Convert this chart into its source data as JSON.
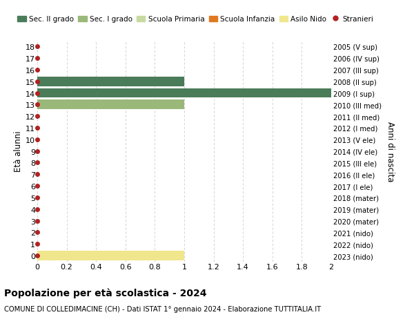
{
  "title": "Popolazione per età scolastica - 2024",
  "subtitle": "COMUNE DI COLLEDIMACINE (CH) - Dati ISTAT 1° gennaio 2024 - Elaborazione TUTTITALIA.IT",
  "ylabel_left": "Età alunni",
  "ylabel_right": "Anni di nascita",
  "xlim": [
    0,
    2.0
  ],
  "yticks": [
    0,
    1,
    2,
    3,
    4,
    5,
    6,
    7,
    8,
    9,
    10,
    11,
    12,
    13,
    14,
    15,
    16,
    17,
    18
  ],
  "right_labels": [
    "2023 (nido)",
    "2022 (nido)",
    "2021 (nido)",
    "2020 (mater)",
    "2019 (mater)",
    "2018 (mater)",
    "2017 (I ele)",
    "2016 (II ele)",
    "2015 (III ele)",
    "2014 (IV ele)",
    "2013 (V ele)",
    "2012 (I med)",
    "2011 (II med)",
    "2010 (III med)",
    "2009 (I sup)",
    "2008 (II sup)",
    "2007 (III sup)",
    "2006 (IV sup)",
    "2005 (V sup)"
  ],
  "bars": [
    {
      "age": 0,
      "value": 1.0,
      "color": "#f0e68c"
    },
    {
      "age": 13,
      "value": 1.0,
      "color": "#9ab87a"
    },
    {
      "age": 14,
      "value": 2.0,
      "color": "#4a7c59"
    },
    {
      "age": 15,
      "value": 1.0,
      "color": "#4a7c59"
    }
  ],
  "stranieri_dots": [
    0,
    1,
    2,
    3,
    4,
    5,
    6,
    7,
    8,
    9,
    10,
    11,
    12,
    13,
    14,
    15,
    16,
    17,
    18
  ],
  "dot_color": "#b22222",
  "legend_items": [
    {
      "label": "Sec. II grado",
      "color": "#4a7c59",
      "type": "patch"
    },
    {
      "label": "Sec. I grado",
      "color": "#9ab87a",
      "type": "patch"
    },
    {
      "label": "Scuola Primaria",
      "color": "#c8daa0",
      "type": "patch"
    },
    {
      "label": "Scuola Infanzia",
      "color": "#e07820",
      "type": "patch"
    },
    {
      "label": "Asilo Nido",
      "color": "#f0e68c",
      "type": "patch"
    },
    {
      "label": "Stranieri",
      "color": "#b22222",
      "type": "dot"
    }
  ],
  "grid_color": "#cccccc",
  "bg_color": "#ffffff",
  "xticks": [
    0,
    0.2,
    0.4,
    0.6,
    0.8,
    1.0,
    1.2,
    1.4,
    1.6,
    1.8,
    2.0
  ]
}
